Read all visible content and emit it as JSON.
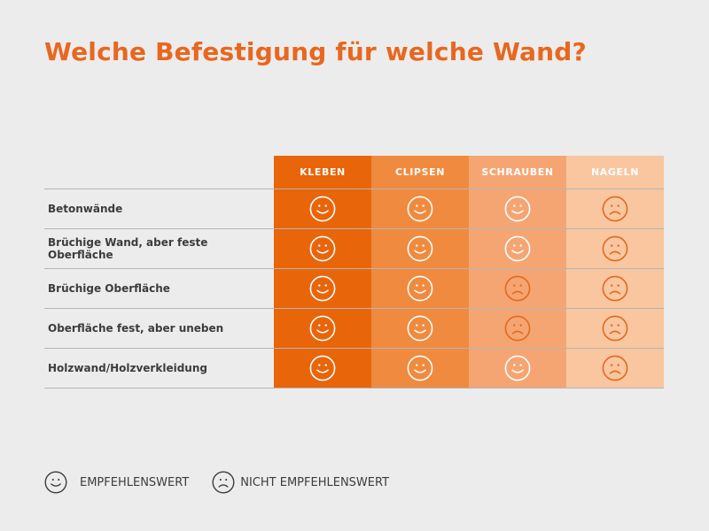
{
  "title": "Welche Befestigung für welche Wand?",
  "colors": {
    "accent": "#e8671f",
    "col_kleben": "#e8650a",
    "col_clipsen": "#f08a3e",
    "col_schrauben": "#f5a572",
    "col_nageln": "#f9c69f"
  },
  "columns": [
    "KLEBEN",
    "CLIPSEN",
    "SCHRAUBEN",
    "NAGELN"
  ],
  "rows": [
    {
      "label": "Betonwände",
      "ratings": [
        "smile",
        "smile",
        "smile",
        "frown"
      ]
    },
    {
      "label": "Brüchige Wand, aber feste Oberfläche",
      "ratings": [
        "smile",
        "smile",
        "smile",
        "frown"
      ]
    },
    {
      "label": "Brüchige Oberfläche",
      "ratings": [
        "smile",
        "smile",
        "frown",
        "frown"
      ]
    },
    {
      "label": "Oberfläche fest, aber uneben",
      "ratings": [
        "smile",
        "smile",
        "frown",
        "frown"
      ]
    },
    {
      "label": "Holzwand/Holzverkleidung",
      "ratings": [
        "smile",
        "smile",
        "smile",
        "frown"
      ]
    }
  ],
  "legend": {
    "recommended": "EMPFEHLENSWERT",
    "not_recommended": "NICHT EMPFEHLENSWERT"
  }
}
